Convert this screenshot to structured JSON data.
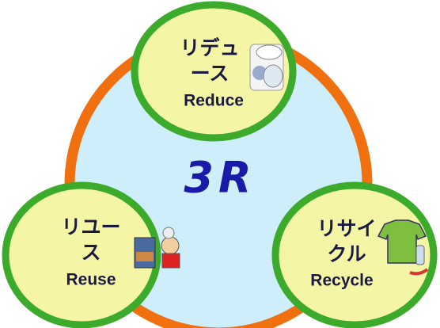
{
  "center": {
    "label": "3R"
  },
  "nodes": [
    {
      "label_lines": [
        "リデュ",
        "ース"
      ],
      "english": "Reduce"
    },
    {
      "label_lines": [
        "リユー",
        "ス"
      ],
      "english": "Reuse"
    },
    {
      "label_lines": [
        "リサイ",
        "クル"
      ],
      "english": "Recycle"
    }
  ]
}
